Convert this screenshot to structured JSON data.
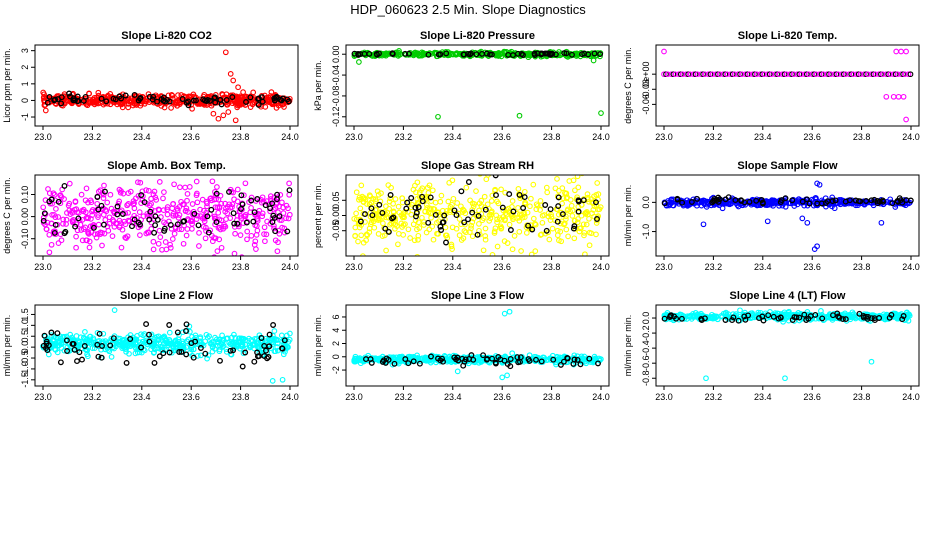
{
  "page_title": "HDP_060623  2.5 Min. Slope Diagnostics",
  "chart_data": [
    {
      "type": "scatter",
      "title": "Slope Li-820 CO2",
      "ylabel": "Licor ppm per min.",
      "color": "#ff0000",
      "xlim": [
        23.0,
        24.0
      ],
      "ylim": [
        -1.3,
        3.1
      ],
      "xticks": [
        23.0,
        23.2,
        23.4,
        23.6,
        23.8,
        24.0
      ],
      "xtick_labels": [
        "23.0",
        "23.2",
        "23.4",
        "23.6",
        "23.8",
        "24.0"
      ],
      "yticks": [
        -1,
        0,
        1,
        2,
        3
      ],
      "ytick_labels": [
        "-1",
        "0",
        "1",
        "2",
        "3"
      ],
      "bulk": {
        "n": 520,
        "center": 0.0,
        "spread": 0.35
      },
      "black": {
        "n": 75,
        "center": 0.05,
        "spread": 0.2
      },
      "outliers": [
        [
          23.74,
          2.9
        ],
        [
          23.76,
          1.6
        ],
        [
          23.77,
          1.2
        ],
        [
          23.79,
          0.8
        ],
        [
          23.81,
          0.5
        ],
        [
          23.71,
          -1.1
        ],
        [
          23.73,
          -0.9
        ],
        [
          23.75,
          -0.7
        ],
        [
          23.78,
          -1.2
        ],
        [
          23.69,
          -0.8
        ]
      ]
    },
    {
      "type": "scatter",
      "title": "Slope Li-820 Pressure",
      "ylabel": "kPa per min.",
      "color": "#00cc00",
      "xlim": [
        23.0,
        24.0
      ],
      "ylim": [
        -0.13,
        0.01
      ],
      "xticks": [
        23.0,
        23.2,
        23.4,
        23.6,
        23.8,
        24.0
      ],
      "xtick_labels": [
        "23.0",
        "23.2",
        "23.4",
        "23.6",
        "23.8",
        "24.0"
      ],
      "yticks": [
        -0.12,
        -0.08,
        -0.04,
        0.0
      ],
      "ytick_labels": [
        "-0.12",
        "-0.08",
        "-0.04",
        "0.00"
      ],
      "bulk": {
        "n": 380,
        "center": 0.0,
        "spread": 0.004
      },
      "black": {
        "n": 55,
        "center": 0.0,
        "spread": 0.002
      },
      "outliers": [
        [
          23.34,
          -0.12
        ],
        [
          23.67,
          -0.118
        ],
        [
          24.0,
          -0.113
        ],
        [
          23.02,
          -0.015
        ],
        [
          23.97,
          -0.012
        ]
      ]
    },
    {
      "type": "scatter",
      "title": "Slope Li-820 Temp.",
      "ylabel": "degrees C per min.",
      "color": "#ff00ff",
      "xlim": [
        23.0,
        24.0
      ],
      "ylim": [
        -0.095,
        0.05
      ],
      "xticks": [
        23.0,
        23.2,
        23.4,
        23.6,
        23.8,
        24.0
      ],
      "xtick_labels": [
        "23.0",
        "23.2",
        "23.4",
        "23.6",
        "23.8",
        "24.0"
      ],
      "yticks": [
        -0.06,
        -0.03,
        0.0
      ],
      "ytick_labels": [
        "-0.06",
        "-0.03",
        "0e+00"
      ],
      "bulk": {
        "n": 0,
        "center": 0.0,
        "spread": 0.0
      },
      "black": {
        "n": 0,
        "center": 0.0,
        "spread": 0.0
      },
      "line_series": {
        "y": 0.0,
        "step": 0.015
      },
      "outliers": [
        [
          23.0,
          0.045
        ],
        [
          23.94,
          0.045
        ],
        [
          23.96,
          0.045
        ],
        [
          23.98,
          0.045
        ],
        [
          23.93,
          -0.045
        ],
        [
          23.95,
          -0.045
        ],
        [
          23.97,
          -0.045
        ],
        [
          23.9,
          -0.045
        ],
        [
          23.98,
          -0.09
        ]
      ]
    },
    {
      "type": "scatter",
      "title": "Slope Amb. Box Temp.",
      "ylabel": "degrees C per min.",
      "color": "#ff00ff",
      "xlim": [
        23.0,
        24.0
      ],
      "ylim": [
        -0.16,
        0.17
      ],
      "xticks": [
        23.0,
        23.2,
        23.4,
        23.6,
        23.8,
        24.0
      ],
      "xtick_labels": [
        "23.0",
        "23.2",
        "23.4",
        "23.6",
        "23.8",
        "24.0"
      ],
      "yticks": [
        -0.1,
        0.0,
        0.1
      ],
      "ytick_labels": [
        "-0.10",
        "0.00",
        "0.10"
      ],
      "bulk": {
        "n": 480,
        "center": 0.0,
        "spread": 0.14
      },
      "black": {
        "n": 70,
        "center": 0.0,
        "spread": 0.1
      },
      "outliers": []
    },
    {
      "type": "scatter",
      "title": "Slope Gas Stream RH",
      "ylabel": "percent per min.",
      "color": "#ffff00",
      "xlim": [
        23.0,
        24.0
      ],
      "ylim": [
        -0.12,
        0.12
      ],
      "xticks": [
        23.0,
        23.2,
        23.4,
        23.6,
        23.8,
        24.0
      ],
      "xtick_labels": [
        "23.0",
        "23.2",
        "23.4",
        "23.6",
        "23.8",
        "24.0"
      ],
      "yticks": [
        -0.05,
        0.0,
        0.05
      ],
      "ytick_labels": [
        "-0.05",
        "0.00",
        "0.05"
      ],
      "bulk": {
        "n": 480,
        "center": 0.0,
        "spread": 0.11
      },
      "black": {
        "n": 65,
        "center": 0.0,
        "spread": 0.07
      },
      "outliers": [
        [
          23.13,
          -0.115
        ]
      ]
    },
    {
      "type": "scatter",
      "title": "Slope Sample Flow",
      "ylabel": "ml/min per min.",
      "color": "#0000ff",
      "xlim": [
        23.0,
        24.0
      ],
      "ylim": [
        -1.7,
        0.8
      ],
      "xticks": [
        23.0,
        23.2,
        23.4,
        23.6,
        23.8,
        24.0
      ],
      "xtick_labels": [
        "23.0",
        "23.2",
        "23.4",
        "23.6",
        "23.8",
        "24.0"
      ],
      "yticks": [
        -1.0,
        0.0
      ],
      "ytick_labels": [
        "-1.0",
        "0.0"
      ],
      "bulk": {
        "n": 420,
        "center": 0.0,
        "spread": 0.12
      },
      "black": {
        "n": 60,
        "center": 0.05,
        "spread": 0.1
      },
      "outliers": [
        [
          23.62,
          0.65
        ],
        [
          23.63,
          0.6
        ],
        [
          23.62,
          -1.5
        ],
        [
          23.61,
          -1.6
        ],
        [
          23.16,
          -0.75
        ],
        [
          23.42,
          -0.65
        ],
        [
          23.58,
          -0.7
        ],
        [
          23.88,
          -0.7
        ],
        [
          23.56,
          -0.55
        ]
      ]
    },
    {
      "type": "scatter",
      "title": "Slope Line 2 Flow",
      "ylabel": "ml/min per min.",
      "color": "#00ffff",
      "xlim": [
        23.0,
        24.0
      ],
      "ylim": [
        -1.6,
        1.75
      ],
      "xticks": [
        23.0,
        23.2,
        23.4,
        23.6,
        23.8,
        24.0
      ],
      "xtick_labels": [
        "23.0",
        "23.2",
        "23.4",
        "23.6",
        "23.8",
        "24.0"
      ],
      "yticks": [
        -1.5,
        -0.5,
        0.5,
        1.5
      ],
      "ytick_labels": [
        "-1.5",
        "-0.5",
        "0.5",
        "1.5"
      ],
      "extra_yticks": [
        -1.0,
        0.0,
        1.0
      ],
      "extra_ytick_labels": [
        "-1.0",
        "0.0",
        "1.0"
      ],
      "bulk": {
        "n": 500,
        "center": 0.15,
        "spread": 0.45
      },
      "black": {
        "n": 70,
        "center": 0.0,
        "spread": 0.8
      },
      "outliers": [
        [
          23.29,
          1.7
        ],
        [
          23.93,
          -1.55
        ],
        [
          23.97,
          -1.5
        ]
      ]
    },
    {
      "type": "scatter",
      "title": "Slope Line 3 Flow",
      "ylabel": "ml/min per min.",
      "color": "#00ffff",
      "xlim": [
        23.0,
        24.0
      ],
      "ylim": [
        -3.8,
        7.2
      ],
      "xticks": [
        23.0,
        23.2,
        23.4,
        23.6,
        23.8,
        24.0
      ],
      "xtick_labels": [
        "23.0",
        "23.2",
        "23.4",
        "23.6",
        "23.8",
        "24.0"
      ],
      "yticks": [
        -2,
        2,
        6
      ],
      "ytick_labels": [
        "-2",
        "2",
        "6"
      ],
      "extra_yticks": [
        0,
        4
      ],
      "extra_ytick_labels": [
        "0",
        "4"
      ],
      "bulk": {
        "n": 500,
        "center": -0.4,
        "spread": 0.5
      },
      "black": {
        "n": 60,
        "center": -0.5,
        "spread": 0.6
      },
      "outliers": [
        [
          23.63,
          6.8
        ],
        [
          23.61,
          6.5
        ],
        [
          23.62,
          -2.8
        ],
        [
          23.6,
          -3.1
        ],
        [
          23.42,
          -2.2
        ]
      ]
    },
    {
      "type": "scatter",
      "title": "Slope Line 4 (LT) Flow",
      "ylabel": "ml/min per min.",
      "color": "#00ffff",
      "xlim": [
        23.0,
        24.0
      ],
      "ylim": [
        -0.85,
        0.12
      ],
      "xticks": [
        23.0,
        23.2,
        23.4,
        23.6,
        23.8,
        24.0
      ],
      "xtick_labels": [
        "23.0",
        "23.2",
        "23.4",
        "23.6",
        "23.8",
        "24.0"
      ],
      "yticks": [
        -0.8,
        -0.4,
        0.0
      ],
      "ytick_labels": [
        "-0.8",
        "-0.4",
        "0.0"
      ],
      "extra_yticks": [
        -0.6,
        -0.2
      ],
      "extra_ytick_labels": [
        "-0.6",
        "-0.2"
      ],
      "bulk": {
        "n": 460,
        "center": 0.02,
        "spread": 0.05
      },
      "black": {
        "n": 55,
        "center": 0.0,
        "spread": 0.04
      },
      "outliers": [
        [
          23.17,
          -0.8
        ],
        [
          23.49,
          -0.8
        ],
        [
          23.84,
          -0.58
        ]
      ]
    }
  ]
}
